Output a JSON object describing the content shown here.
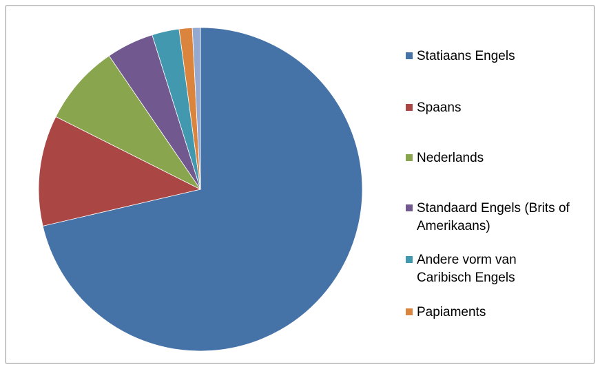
{
  "chart_data": {
    "type": "pie",
    "title": "",
    "categories": [
      "Statiaans Engels",
      "Spaans",
      "Nederlands",
      "Standaard Engels (Brits of Amerikaans)",
      "Andere vorm van Caribisch Engels",
      "Papiaments",
      ""
    ],
    "values": [
      71.0,
      11.0,
      8.0,
      4.7,
      2.7,
      1.3,
      0.8
    ],
    "colors": [
      "#4572A7",
      "#AA4643",
      "#89A54E",
      "#71588F",
      "#4198AF",
      "#DB843D",
      "#93A9CF"
    ],
    "legend_position": "right",
    "legend": [
      "Statiaans Engels",
      "Spaans",
      "Nederlands",
      "Standaard Engels (Brits of Amerikaans)",
      "Andere vorm van Caribisch Engels",
      "Papiaments"
    ]
  }
}
